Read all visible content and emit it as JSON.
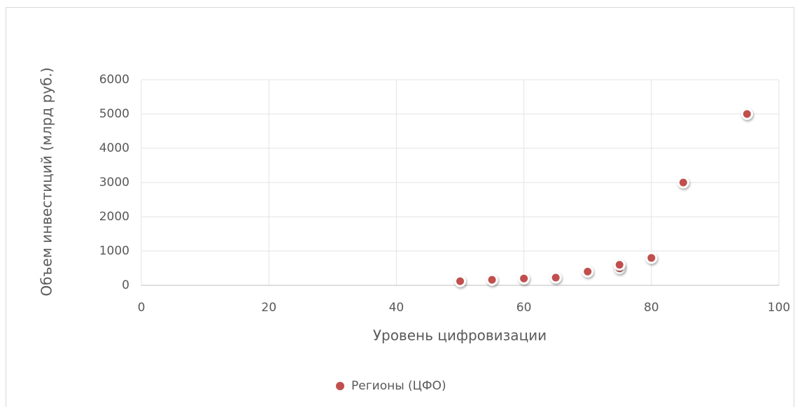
{
  "chart_data": {
    "type": "scatter",
    "x_label": "Уровень цифровизации",
    "y_label": "Объем инвестиций (млрд руб.)",
    "x": [
      50,
      55,
      60,
      65,
      70,
      75,
      75,
      80,
      85,
      95
    ],
    "series": [
      {
        "name": "Регионы (ЦФО)",
        "color": "#c0504d",
        "values": [
          120,
          160,
          200,
          225,
          400,
          500,
          600,
          800,
          3000,
          5000
        ]
      }
    ],
    "xlim": [
      0,
      100
    ],
    "xticks": [
      0,
      20,
      40,
      60,
      80,
      100
    ],
    "ylim": [
      0,
      6000
    ],
    "yticks": [
      0,
      1000,
      2000,
      3000,
      4000,
      5000,
      6000
    ],
    "grid": true,
    "legend": "bottom"
  }
}
